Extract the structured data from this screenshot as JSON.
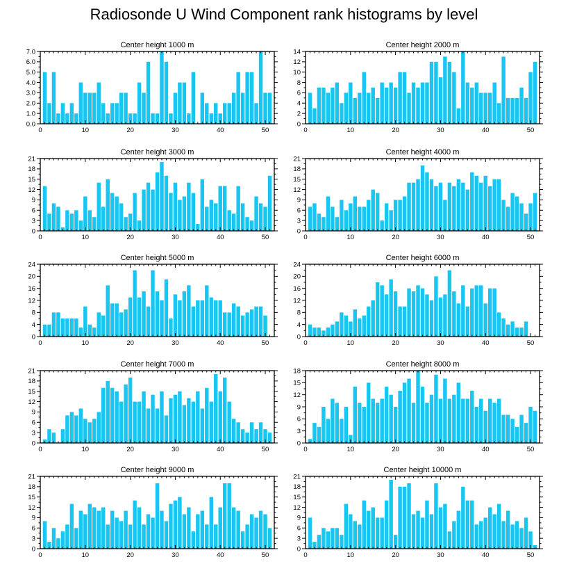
{
  "title": "Radiosonde U Wind Component rank histograms by level",
  "colors": {
    "bar": "#19c6f2",
    "frame": "#000000"
  },
  "chart_data": [
    {
      "type": "bar",
      "title": "Center height 1000 m",
      "xlabel": "",
      "ylabel": "",
      "xlim": [
        0,
        52
      ],
      "ylim": [
        0,
        7
      ],
      "xticks": [
        0,
        10,
        20,
        30,
        40,
        50
      ],
      "yticks": [
        0,
        1,
        2,
        3,
        4,
        5,
        6,
        7
      ],
      "ytick_labels": [
        "0.0",
        "1.0",
        "2.0",
        "3.0",
        "4.0",
        "5.0",
        "6.0",
        "7.0"
      ],
      "values": [
        5,
        2,
        5,
        1,
        2,
        1,
        2,
        1,
        4,
        3,
        3,
        3,
        4,
        2,
        1,
        2,
        2,
        3,
        3,
        1,
        1,
        4,
        3,
        6,
        1,
        1,
        7,
        6,
        1,
        3,
        4,
        4,
        1,
        5,
        0,
        3,
        2,
        1,
        2,
        1,
        2,
        2,
        3,
        5,
        3,
        5,
        5,
        2,
        7,
        3,
        3
      ]
    },
    {
      "type": "bar",
      "title": "Center height 2000 m",
      "xlabel": "",
      "ylabel": "",
      "xlim": [
        0,
        52
      ],
      "ylim": [
        0,
        14
      ],
      "xticks": [
        0,
        10,
        20,
        30,
        40,
        50
      ],
      "yticks": [
        0,
        2,
        4,
        6,
        8,
        10,
        12,
        14
      ],
      "ytick_labels": [
        "0",
        "2",
        "4",
        "6",
        "8",
        "10",
        "12",
        "14"
      ],
      "values": [
        6,
        3,
        7,
        7,
        6,
        7,
        8,
        4,
        6,
        8,
        5,
        6,
        10,
        6,
        7,
        5,
        8,
        7,
        8,
        7,
        10,
        10,
        6,
        8,
        7,
        8,
        8,
        12,
        12,
        9,
        13,
        12,
        10,
        3,
        14,
        8,
        7,
        8,
        6,
        6,
        6,
        8,
        4,
        13,
        5,
        5,
        5,
        7,
        5,
        10,
        12
      ]
    },
    {
      "type": "bar",
      "title": "Center height 3000 m",
      "xlabel": "",
      "ylabel": "",
      "xlim": [
        0,
        52
      ],
      "ylim": [
        0,
        21
      ],
      "xticks": [
        0,
        10,
        20,
        30,
        40,
        50
      ],
      "yticks": [
        0,
        3,
        6,
        9,
        12,
        15,
        18,
        21
      ],
      "ytick_labels": [
        "0",
        "3",
        "6",
        "9",
        "12",
        "15",
        "18",
        "21"
      ],
      "values": [
        13,
        5,
        8,
        7,
        1,
        6,
        5,
        6,
        3,
        10,
        6,
        4,
        14,
        7,
        15,
        11,
        10,
        8,
        4,
        5,
        11,
        3,
        12,
        14,
        12,
        17,
        20,
        16,
        11,
        14,
        9,
        10,
        14,
        11,
        2,
        15,
        7,
        9,
        8,
        13,
        13,
        6,
        5,
        13,
        8,
        4,
        3,
        10,
        8,
        7,
        16
      ]
    },
    {
      "type": "bar",
      "title": "Center height 4000 m",
      "xlabel": "",
      "ylabel": "",
      "xlim": [
        0,
        52
      ],
      "ylim": [
        0,
        21
      ],
      "xticks": [
        0,
        10,
        20,
        30,
        40,
        50
      ],
      "yticks": [
        0,
        3,
        6,
        9,
        12,
        15,
        18,
        21
      ],
      "ytick_labels": [
        "0",
        "3",
        "6",
        "9",
        "12",
        "15",
        "18",
        "21"
      ],
      "values": [
        7,
        8,
        5,
        4,
        10,
        7,
        4,
        9,
        6,
        8,
        10,
        7,
        7,
        9,
        12,
        11,
        3,
        8,
        6,
        9,
        9,
        10,
        14,
        14,
        15,
        19,
        17,
        15,
        13,
        14,
        9,
        14,
        13,
        15,
        14,
        12,
        17,
        16,
        14,
        16,
        13,
        15,
        15,
        9,
        7,
        11,
        10,
        8,
        5,
        8,
        11
      ]
    },
    {
      "type": "bar",
      "title": "Center height 5000 m",
      "xlabel": "",
      "ylabel": "",
      "xlim": [
        0,
        52
      ],
      "ylim": [
        0,
        24
      ],
      "xticks": [
        0,
        10,
        20,
        30,
        40,
        50
      ],
      "yticks": [
        0,
        4,
        8,
        12,
        16,
        20,
        24
      ],
      "ytick_labels": [
        "0",
        "4",
        "8",
        "12",
        "16",
        "20",
        "24"
      ],
      "values": [
        4,
        4,
        8,
        8,
        6,
        6,
        6,
        6,
        3,
        10,
        4,
        3,
        8,
        7,
        17,
        11,
        11,
        8,
        9,
        13,
        22,
        13,
        15,
        10,
        22,
        15,
        12,
        19,
        6,
        14,
        12,
        15,
        17,
        10,
        12,
        12,
        17,
        13,
        12,
        12,
        8,
        8,
        11,
        10,
        7,
        8,
        9,
        10,
        10,
        7,
        0
      ]
    },
    {
      "type": "bar",
      "title": "Center height 6000 m",
      "xlabel": "",
      "ylabel": "",
      "xlim": [
        0,
        52
      ],
      "ylim": [
        0,
        24
      ],
      "xticks": [
        0,
        10,
        20,
        30,
        40,
        50
      ],
      "yticks": [
        0,
        4,
        8,
        12,
        16,
        20,
        24
      ],
      "ytick_labels": [
        "0",
        "4",
        "8",
        "12",
        "16",
        "20",
        "24"
      ],
      "values": [
        4,
        3,
        3,
        2,
        3,
        4,
        5,
        8,
        7,
        5,
        9,
        6,
        7,
        10,
        12,
        18,
        17,
        14,
        19,
        15,
        10,
        10,
        16,
        15,
        17,
        16,
        14,
        12,
        20,
        13,
        14,
        22,
        15,
        11,
        17,
        10,
        16,
        17,
        17,
        11,
        16,
        16,
        8,
        6,
        4,
        5,
        3,
        3,
        5,
        0,
        0
      ]
    },
    {
      "type": "bar",
      "title": "Center height 7000 m",
      "xlabel": "",
      "ylabel": "",
      "xlim": [
        0,
        52
      ],
      "ylim": [
        0,
        21
      ],
      "xticks": [
        0,
        10,
        20,
        30,
        40,
        50
      ],
      "yticks": [
        0,
        3,
        6,
        9,
        12,
        15,
        18,
        21
      ],
      "ytick_labels": [
        "0",
        "3",
        "6",
        "9",
        "12",
        "15",
        "18",
        "21"
      ],
      "values": [
        1,
        4,
        3,
        0,
        4,
        8,
        9,
        8,
        10,
        7,
        6,
        7,
        9,
        16,
        18,
        16,
        15,
        12,
        17,
        19,
        12,
        12,
        15,
        10,
        14,
        10,
        15,
        8,
        13,
        14,
        15,
        11,
        13,
        12,
        15,
        10,
        16,
        12,
        20,
        15,
        19,
        12,
        7,
        6,
        4,
        3,
        6,
        4,
        6,
        4,
        3
      ]
    },
    {
      "type": "bar",
      "title": "Center height 8000 m",
      "xlabel": "",
      "ylabel": "",
      "xlim": [
        0,
        52
      ],
      "ylim": [
        0,
        18
      ],
      "xticks": [
        0,
        10,
        20,
        30,
        40,
        50
      ],
      "yticks": [
        0,
        3,
        6,
        9,
        12,
        15,
        18
      ],
      "ytick_labels": [
        "0",
        "3",
        "6",
        "9",
        "12",
        "15",
        "18"
      ],
      "values": [
        1,
        5,
        4,
        9,
        6,
        11,
        10,
        6,
        9,
        2,
        14,
        10,
        9,
        15,
        11,
        10,
        11,
        14,
        12,
        9,
        13,
        15,
        16,
        10,
        18,
        14,
        10,
        12,
        17,
        11,
        16,
        11,
        12,
        15,
        11,
        11,
        13,
        9,
        11,
        8,
        11,
        10,
        11,
        7,
        7,
        6,
        4,
        7,
        5,
        9,
        8
      ]
    },
    {
      "type": "bar",
      "title": "Center height 9000 m",
      "xlabel": "",
      "ylabel": "",
      "xlim": [
        0,
        52
      ],
      "ylim": [
        0,
        21
      ],
      "xticks": [
        0,
        10,
        20,
        30,
        40,
        50
      ],
      "yticks": [
        0,
        3,
        6,
        9,
        12,
        15,
        18,
        21
      ],
      "ytick_labels": [
        "0",
        "3",
        "6",
        "9",
        "12",
        "15",
        "18",
        "21"
      ],
      "values": [
        8,
        2,
        6,
        3,
        5,
        7,
        13,
        6,
        11,
        10,
        13,
        12,
        11,
        12,
        7,
        11,
        9,
        8,
        11,
        7,
        14,
        12,
        7,
        10,
        9,
        19,
        11,
        8,
        13,
        14,
        15,
        10,
        12,
        5,
        10,
        11,
        7,
        15,
        7,
        12,
        19,
        19,
        12,
        11,
        5,
        7,
        10,
        9,
        11,
        10,
        6
      ]
    },
    {
      "type": "bar",
      "title": "Center height 10000 m",
      "xlabel": "",
      "ylabel": "",
      "xlim": [
        0,
        52
      ],
      "ylim": [
        0,
        21
      ],
      "xticks": [
        0,
        10,
        20,
        30,
        40,
        50
      ],
      "yticks": [
        0,
        3,
        6,
        9,
        12,
        15,
        18,
        21
      ],
      "ytick_labels": [
        "0",
        "3",
        "6",
        "9",
        "12",
        "15",
        "18",
        "21"
      ],
      "values": [
        9,
        2,
        4,
        6,
        5,
        6,
        6,
        4,
        13,
        10,
        8,
        7,
        14,
        11,
        12,
        9,
        9,
        14,
        20,
        4,
        18,
        18,
        19,
        10,
        11,
        9,
        14,
        10,
        19,
        12,
        13,
        5,
        8,
        11,
        18,
        14,
        14,
        7,
        8,
        9,
        12,
        10,
        13,
        8,
        11,
        7,
        8,
        6,
        9,
        5,
        1
      ]
    }
  ]
}
